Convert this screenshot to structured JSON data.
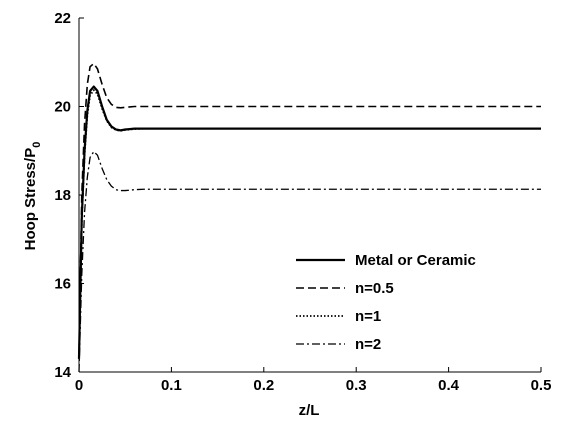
{
  "chart_data": {
    "type": "line",
    "xlabel": "z/L",
    "ylabel_main": "Hoop Stress/P",
    "ylabel_sub": "0",
    "xlim": [
      0,
      0.5
    ],
    "ylim": [
      14,
      22
    ],
    "x_ticks": [
      "0",
      "0.1",
      "0.2",
      "0.3",
      "0.4",
      "0.5"
    ],
    "y_ticks": [
      "14",
      "16",
      "18",
      "20",
      "22"
    ],
    "grid": false,
    "legend_position": "lower-right",
    "series": [
      {
        "name": "Metal or Ceramic",
        "dash": "solid",
        "x": [
          0,
          0.003,
          0.006,
          0.009,
          0.012,
          0.016,
          0.02,
          0.025,
          0.03,
          0.035,
          0.04,
          0.045,
          0.05,
          0.06,
          0.07,
          0.1,
          0.2,
          0.3,
          0.4,
          0.5
        ],
        "y": [
          14.3,
          17.5,
          19.0,
          19.9,
          20.35,
          20.45,
          20.35,
          20.0,
          19.7,
          19.55,
          19.48,
          19.46,
          19.48,
          19.5,
          19.5,
          19.5,
          19.5,
          19.5,
          19.5,
          19.5
        ]
      },
      {
        "name": "n=0.5",
        "dash": "dashed",
        "x": [
          0,
          0.003,
          0.006,
          0.009,
          0.012,
          0.016,
          0.02,
          0.025,
          0.03,
          0.035,
          0.04,
          0.045,
          0.05,
          0.06,
          0.07,
          0.1,
          0.2,
          0.3,
          0.4,
          0.5
        ],
        "y": [
          14.3,
          18.0,
          19.6,
          20.5,
          20.9,
          20.97,
          20.85,
          20.5,
          20.2,
          20.05,
          19.98,
          19.97,
          19.98,
          20.0,
          20.0,
          20.0,
          20.0,
          20.0,
          20.0,
          20.0
        ]
      },
      {
        "name": "n=1",
        "dash": "dotted",
        "x": [
          0,
          0.003,
          0.006,
          0.009,
          0.012,
          0.016,
          0.02,
          0.025,
          0.03,
          0.035,
          0.04,
          0.045,
          0.05,
          0.06,
          0.07,
          0.1,
          0.2,
          0.3,
          0.4,
          0.5
        ],
        "y": [
          14.3,
          17.4,
          18.9,
          19.8,
          20.25,
          20.37,
          20.28,
          19.95,
          19.68,
          19.53,
          19.47,
          19.45,
          19.47,
          19.49,
          19.5,
          19.5,
          19.5,
          19.5,
          19.5,
          19.5
        ]
      },
      {
        "name": "n=2",
        "dash": "dashdot",
        "x": [
          0,
          0.003,
          0.006,
          0.009,
          0.012,
          0.016,
          0.02,
          0.025,
          0.03,
          0.035,
          0.04,
          0.045,
          0.05,
          0.06,
          0.07,
          0.1,
          0.2,
          0.3,
          0.4,
          0.5
        ],
        "y": [
          14.0,
          16.2,
          17.6,
          18.4,
          18.85,
          18.98,
          18.9,
          18.6,
          18.35,
          18.2,
          18.12,
          18.1,
          18.1,
          18.12,
          18.13,
          18.13,
          18.13,
          18.13,
          18.13,
          18.13
        ]
      }
    ]
  }
}
